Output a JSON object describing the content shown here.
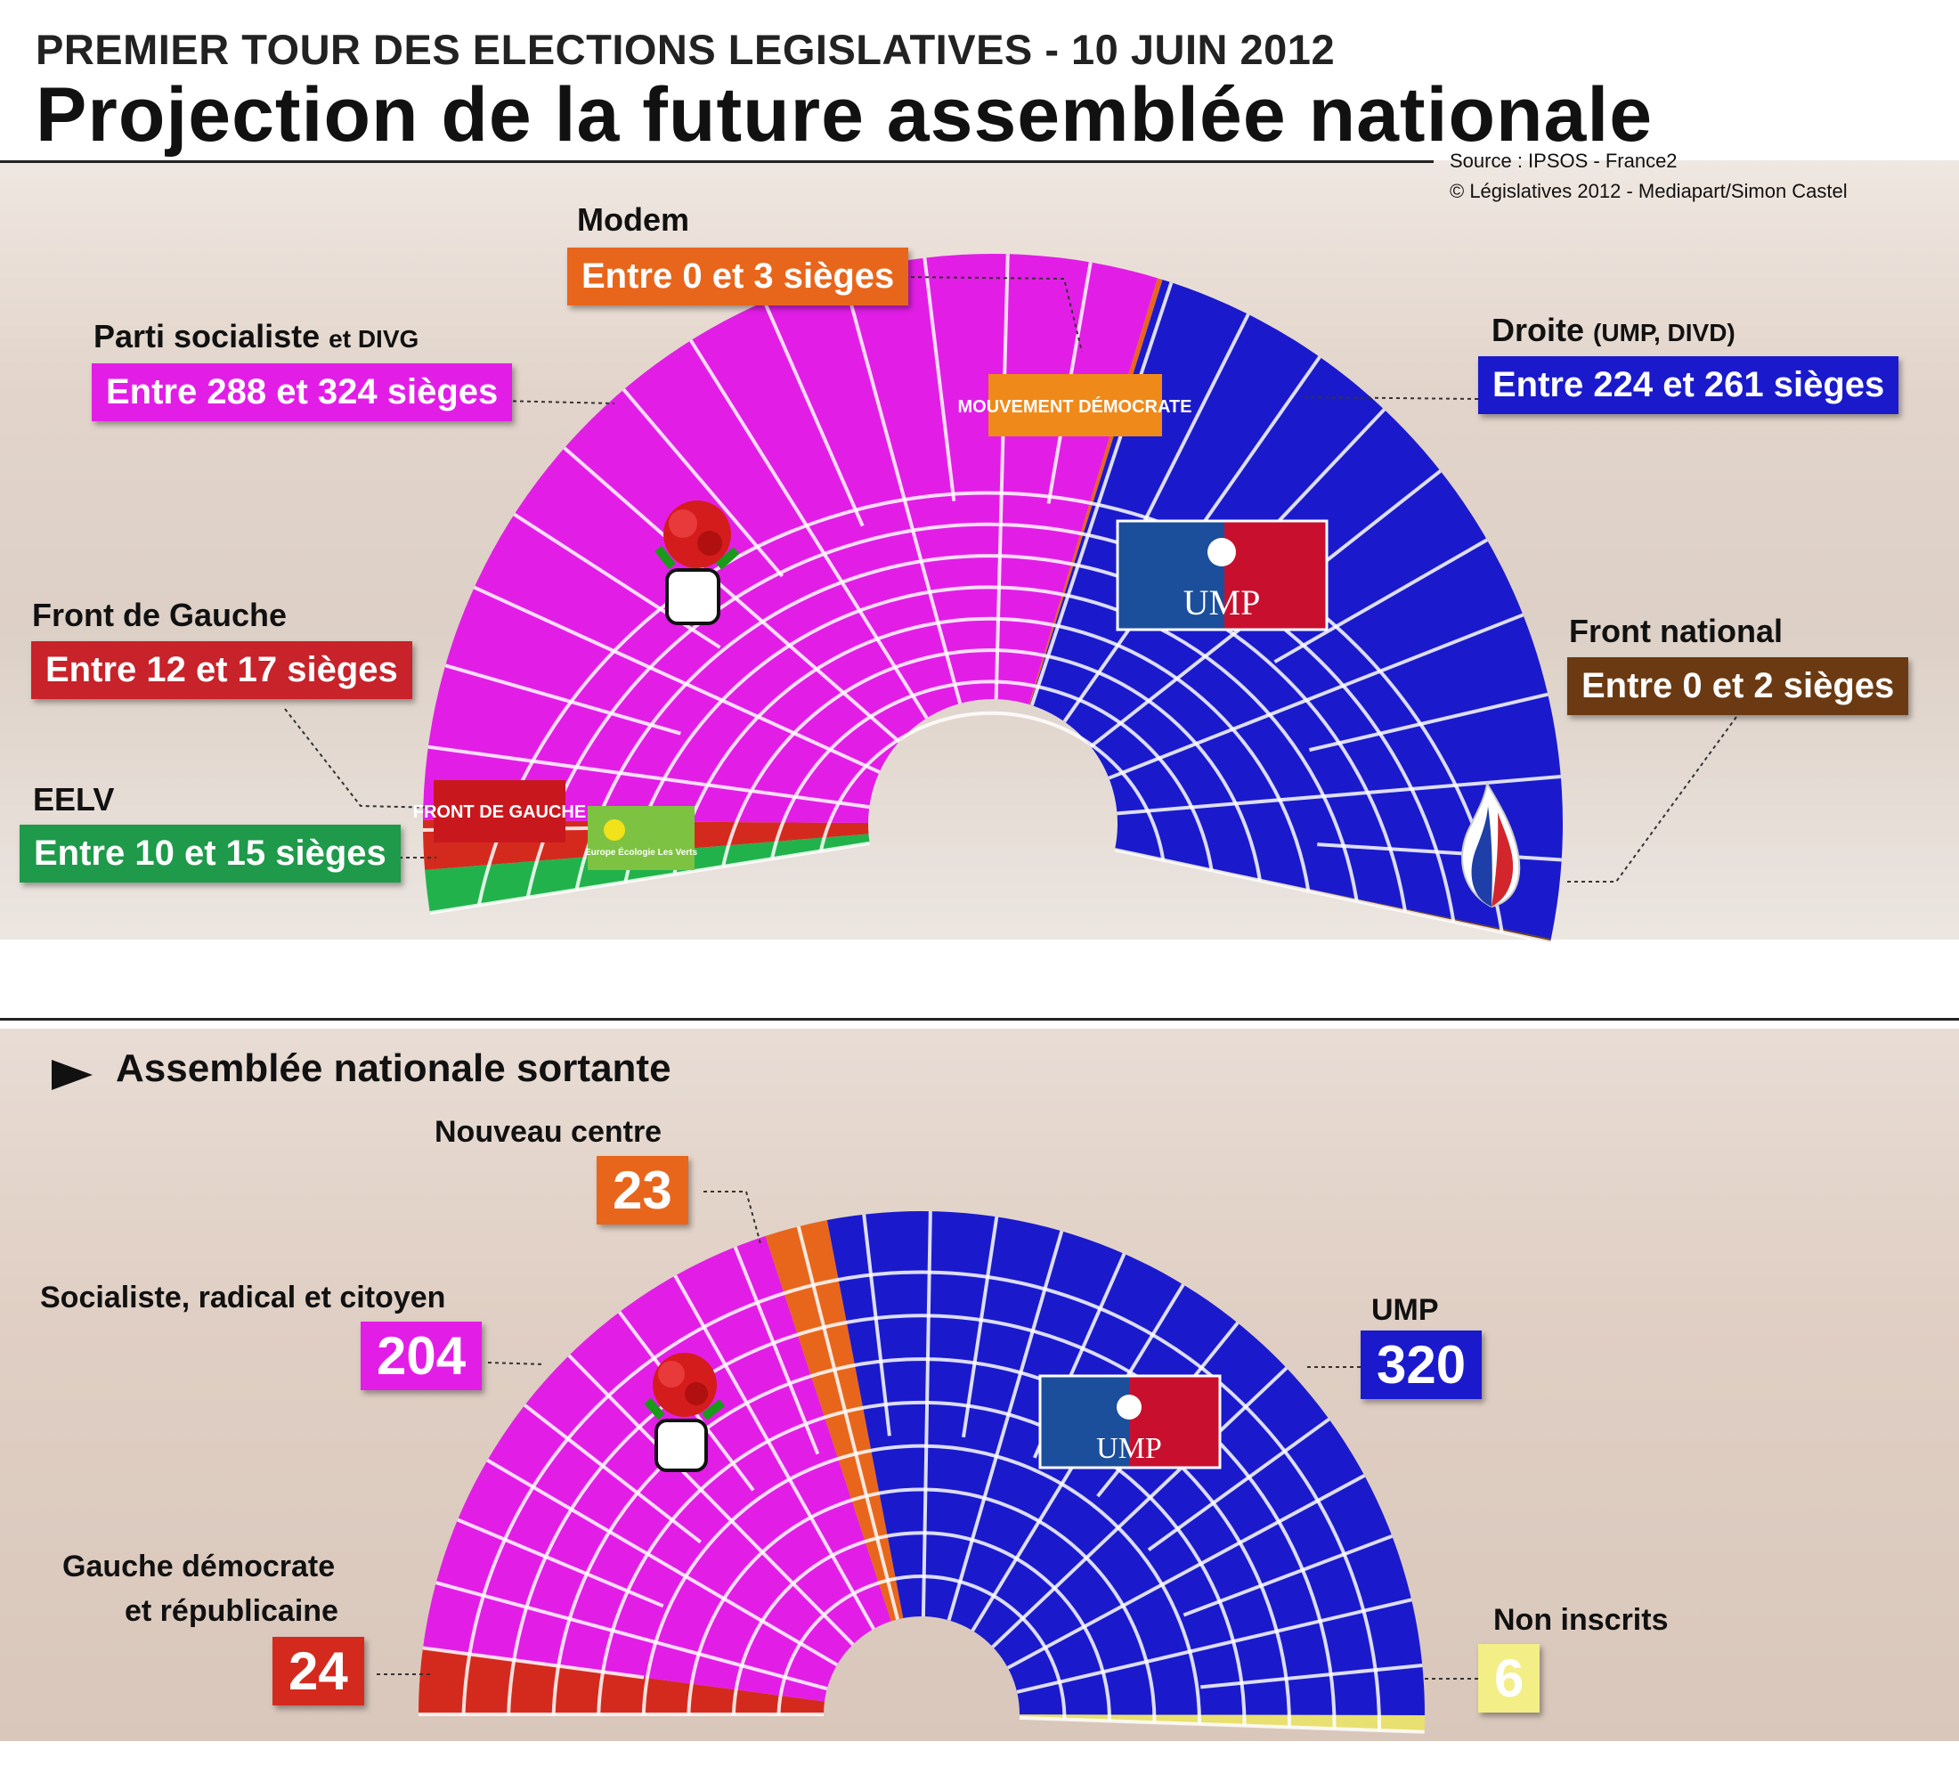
{
  "header": {
    "kicker": "PREMIER TOUR DES ELECTIONS LEGISLATIVES - 10 JUIN 2012",
    "title": "Projection de la future assemblée nationale",
    "source_line1": "Source : IPSOS - France2",
    "source_line2": "© Législatives 2012 - Mediapart/Simon Castel"
  },
  "section_sortante": "Assemblée nationale sortante",
  "logos": {
    "front_de_gauche": "FRONT DE GAUCHE",
    "eelv": "Europe Écologie Les Verts",
    "modem": "MOUVEMENT DÉMOCRATE",
    "ump": "UMP"
  },
  "chart_data": [
    {
      "type": "hemicycle",
      "title": "Projection de la future assemblée nationale",
      "groups": [
        {
          "name": "EELV",
          "label": "Entre 10 et 15 sièges",
          "min": 10,
          "max": 15,
          "color": "#22b24c"
        },
        {
          "name": "Front de Gauche",
          "label": "Entre 12 et 17 sièges",
          "min": 12,
          "max": 17,
          "color": "#d42a1e"
        },
        {
          "name": "Parti socialiste",
          "name_suffix": "et DIVG",
          "label": "Entre 288 et 324 sièges",
          "min": 288,
          "max": 324,
          "color": "#e21ee6"
        },
        {
          "name": "Modem",
          "label": "Entre 0 et 3 sièges",
          "min": 0,
          "max": 3,
          "color": "#e8661c"
        },
        {
          "name": "Droite",
          "name_suffix": "(UMP, DIVD)",
          "label": "Entre 224 et 261 sièges",
          "min": 224,
          "max": 261,
          "color": "#1a1acc"
        },
        {
          "name": "Front national",
          "label": "Entre 0 et 2 sièges",
          "min": 0,
          "max": 2,
          "color": "#6b3a12"
        }
      ]
    },
    {
      "type": "hemicycle",
      "title": "Assemblée nationale sortante",
      "groups": [
        {
          "name": "Gauche démocrate et républicaine",
          "name_line1": "Gauche démocrate",
          "name_line2": "et républicaine",
          "value": 24,
          "color": "#d42a1e"
        },
        {
          "name": "Socialiste, radical et citoyen",
          "value": 204,
          "color": "#e21ee6"
        },
        {
          "name": "Nouveau centre",
          "value": 23,
          "color": "#e8661c"
        },
        {
          "name": "UMP",
          "value": 320,
          "color": "#1a1acc"
        },
        {
          "name": "Non inscrits",
          "value": 6,
          "color": "#e8e070"
        }
      ]
    }
  ]
}
